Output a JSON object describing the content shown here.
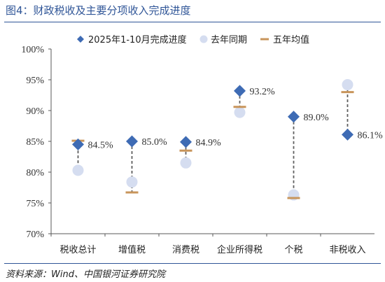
{
  "figure": {
    "title": "图4：财政税收及主要分项收入完成进度",
    "source": "资料来源：Wind、中国银河证券研究院"
  },
  "colors": {
    "title": "#2f5597",
    "progress_marker": "#3e6bb4",
    "last_year_marker": "#d5ddf0",
    "five_year_marker": "#c8955b",
    "connector": "#5f5f5f",
    "axis": "#595959"
  },
  "chart_data": {
    "type": "scatter",
    "categories": [
      "税收总计",
      "增值税",
      "消费税",
      "企业所得税",
      "个税",
      "非税收入"
    ],
    "ylim": [
      70,
      100
    ],
    "yticks": [
      70,
      75,
      80,
      85,
      90,
      95,
      100
    ],
    "ytick_labels": [
      "70%",
      "75%",
      "80%",
      "85%",
      "90%",
      "95%",
      "100%"
    ],
    "grid": false,
    "legend_position": "top",
    "series": [
      {
        "name": "2025年1-10月完成进度",
        "marker": "diamond",
        "values": [
          84.5,
          85.0,
          84.9,
          93.2,
          89.0,
          86.1
        ],
        "labels": [
          "84.5%",
          "85.0%",
          "84.9%",
          "93.2%",
          "89.0%",
          "86.1%"
        ]
      },
      {
        "name": "去年同期",
        "marker": "circle",
        "values": [
          80.3,
          78.4,
          81.5,
          89.7,
          76.3,
          94.2
        ]
      },
      {
        "name": "五年均值",
        "marker": "dash",
        "values": [
          85.1,
          76.7,
          83.5,
          90.6,
          75.8,
          93.0
        ]
      }
    ]
  }
}
